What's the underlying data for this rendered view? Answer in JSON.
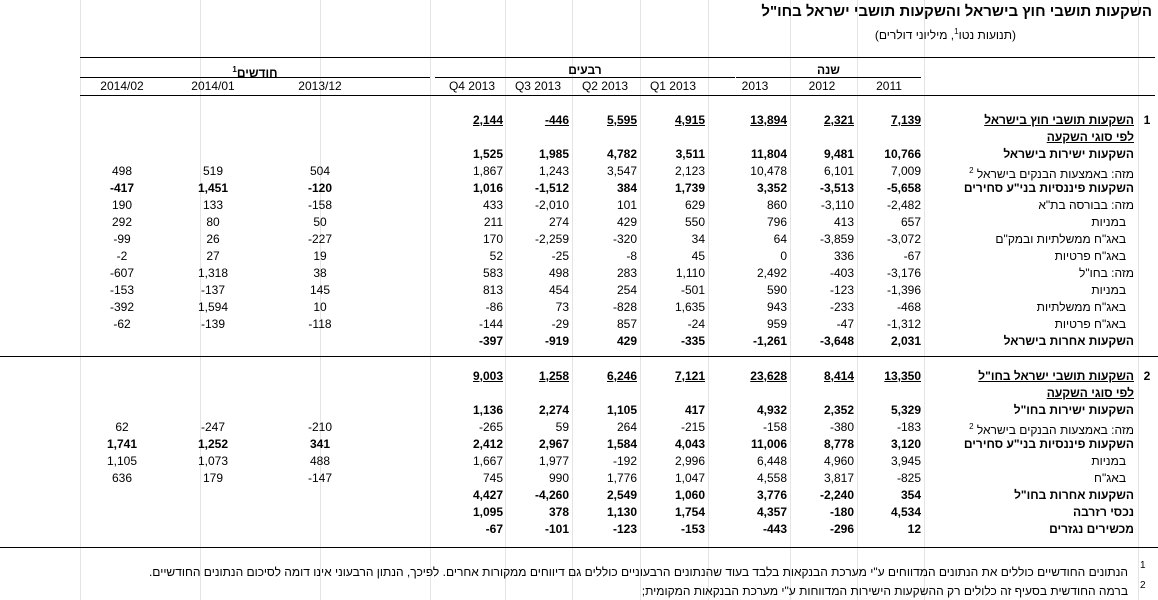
{
  "title": "השקעות תושבי חוץ בישראל והשקעות תושבי ישראל בחו\"ל",
  "subtitle_pre": "(תנועות נטו",
  "subtitle_sup": "1",
  "subtitle_post": ", מיליוני דולרים)",
  "groups": {
    "year": "שנה",
    "quarters": "רבעים",
    "months": "חודשים",
    "months_sup": "1"
  },
  "columns": [
    "2011",
    "2012",
    "2013",
    "Q1 2013",
    "Q2 2013",
    "Q3 2013",
    "Q4 2013",
    "2013/12",
    "2014/01",
    "2014/02"
  ],
  "section1_num": "1",
  "section2_num": "2",
  "rows": [
    {
      "label": "השקעות תושבי חוץ בישראל",
      "style": "bu",
      "values": [
        "7,139",
        "2,321",
        "13,894",
        "4,915",
        "5,595",
        "-446",
        "2,144",
        "",
        "",
        ""
      ]
    },
    {
      "label": "לפי סוגי השקעה",
      "style": "bu",
      "values": [
        "",
        "",
        "",
        "",
        "",
        "",
        "",
        "",
        "",
        ""
      ]
    },
    {
      "label": "השקעות ישירות בישראל",
      "style": "b",
      "values": [
        "10,766",
        "9,481",
        "11,804",
        "3,511",
        "4,782",
        "1,985",
        "1,525",
        "",
        "",
        ""
      ]
    },
    {
      "label": "מזה: באמצעות הבנקים בישראל",
      "sup": "2",
      "style": "",
      "values": [
        "7,009",
        "6,101",
        "10,478",
        "2,123",
        "3,547",
        "1,243",
        "1,867",
        "504",
        "519",
        "498"
      ]
    },
    {
      "label": "השקעות פיננסיות בני\"ע סחירים",
      "style": "b",
      "values": [
        "-5,658",
        "-3,513",
        "3,352",
        "1,739",
        "384",
        "-1,512",
        "1,016",
        "-120",
        "1,451",
        "-417"
      ]
    },
    {
      "label": "מזה: בבורסה בת\"א",
      "style": "",
      "values": [
        "-2,482",
        "-3,110",
        "860",
        "629",
        "101",
        "-2,010",
        "433",
        "-158",
        "133",
        "190"
      ]
    },
    {
      "label": "במניות",
      "style": "",
      "indent": 1,
      "values": [
        "657",
        "413",
        "796",
        "550",
        "429",
        "274",
        "211",
        "50",
        "80",
        "292"
      ]
    },
    {
      "label": "באג\"ח ממשלתיות ובמק\"ם",
      "style": "",
      "indent": 1,
      "values": [
        "-3,072",
        "-3,859",
        "64",
        "34",
        "-320",
        "-2,259",
        "170",
        "-227",
        "26",
        "-99"
      ]
    },
    {
      "label": "באג\"ח פרטיות",
      "style": "",
      "indent": 1,
      "values": [
        "-67",
        "336",
        "0",
        "45",
        "-8",
        "-25",
        "52",
        "19",
        "27",
        "-2"
      ]
    },
    {
      "label": "מזה: בחו\"ל",
      "style": "",
      "values": [
        "-3,176",
        "-403",
        "2,492",
        "1,110",
        "283",
        "498",
        "583",
        "38",
        "1,318",
        "-607"
      ]
    },
    {
      "label": "במניות",
      "style": "",
      "indent": 1,
      "values": [
        "-1,396",
        "-123",
        "590",
        "-501",
        "254",
        "454",
        "813",
        "145",
        "-137",
        "-153"
      ]
    },
    {
      "label": "באג\"ח ממשלתיות",
      "style": "",
      "indent": 1,
      "values": [
        "-468",
        "-233",
        "943",
        "1,635",
        "-828",
        "73",
        "-86",
        "10",
        "1,594",
        "-392"
      ]
    },
    {
      "label": "באג\"ח פרטיות",
      "style": "",
      "indent": 1,
      "values": [
        "-1,312",
        "-47",
        "959",
        "-24",
        "857",
        "-29",
        "-144",
        "-118",
        "-139",
        "-62"
      ]
    },
    {
      "label": "השקעות אחרות בישראל",
      "style": "b",
      "values": [
        "2,031",
        "-3,648",
        "-1,261",
        "-335",
        "429",
        "-919",
        "-397",
        "",
        "",
        ""
      ]
    },
    {
      "label": "",
      "style": "",
      "values": [
        "",
        "",
        "",
        "",
        "",
        "",
        "",
        "",
        "",
        ""
      ]
    },
    {
      "label": "השקעות תושבי ישראל בחו\"ל",
      "style": "bu",
      "values": [
        "13,350",
        "8,414",
        "23,628",
        "7,121",
        "6,246",
        "1,258",
        "9,003",
        "",
        "",
        ""
      ]
    },
    {
      "label": "לפי סוגי השקעה",
      "style": "bu",
      "values": [
        "",
        "",
        "",
        "",
        "",
        "",
        "",
        "",
        "",
        ""
      ]
    },
    {
      "label": "השקעות ישירות בחו\"ל",
      "style": "b",
      "values": [
        "5,329",
        "2,352",
        "4,932",
        "417",
        "1,105",
        "2,274",
        "1,136",
        "",
        "",
        ""
      ]
    },
    {
      "label": "מזה: באמצעות הבנקים בישראל",
      "sup": "2",
      "style": "",
      "values": [
        "-183",
        "-380",
        "-158",
        "-215",
        "264",
        "59",
        "-265",
        "-210",
        "-247",
        "62"
      ]
    },
    {
      "label": "השקעות פיננסיות בני\"ע סחירים",
      "style": "b",
      "values": [
        "3,120",
        "8,778",
        "11,006",
        "4,043",
        "1,584",
        "2,967",
        "2,412",
        "341",
        "1,252",
        "1,741"
      ]
    },
    {
      "label": "במניות",
      "style": "",
      "indent": 1,
      "values": [
        "3,945",
        "4,960",
        "6,448",
        "2,996",
        "-192",
        "1,977",
        "1,667",
        "488",
        "1,073",
        "1,105"
      ]
    },
    {
      "label": "באג\"ח",
      "style": "",
      "indent": 1,
      "values": [
        "-825",
        "3,817",
        "4,558",
        "1,047",
        "1,776",
        "990",
        "745",
        "-147",
        "179",
        "636"
      ]
    },
    {
      "label": "השקעות אחרות בחו\"ל",
      "style": "b",
      "values": [
        "354",
        "-2,240",
        "3,776",
        "1,060",
        "2,549",
        "-4,260",
        "4,427",
        "",
        "",
        ""
      ]
    },
    {
      "label": "נכסי רזרבה",
      "style": "b",
      "values": [
        "4,534",
        "-180",
        "4,357",
        "1,754",
        "1,130",
        "378",
        "1,095",
        "",
        "",
        ""
      ]
    },
    {
      "label": "מכשירים נגזרים",
      "style": "b",
      "values": [
        "12",
        "-296",
        "-443",
        "-153",
        "-123",
        "-101",
        "-67",
        "",
        "",
        ""
      ]
    }
  ],
  "notes": [
    {
      "num": "1",
      "text": "הנתונים החודשיים כוללים את הנתונים המדווחים ע\"י מערכת הבנקאות בלבד בעוד שהנתונים הרבעוניים כוללים גם דיווחים ממקורות אחרים. לפיכך, הנתון הרבעוני אינו דומה לסיכום הנתונים החודשיים."
    },
    {
      "num": "2",
      "text": "ברמה החודשית בסעיף זה כלולים רק ההשקעות הישירות המדווחות ע\"י מערכת הבנקאות המקומית;"
    }
  ]
}
